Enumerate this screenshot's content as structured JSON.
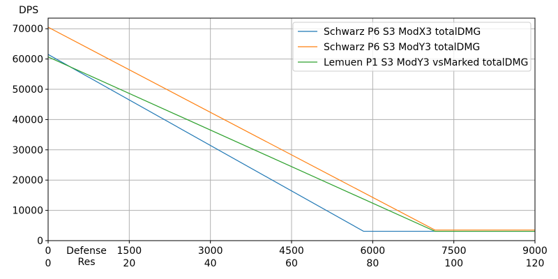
{
  "chart_data": {
    "type": "line",
    "ylabel": "DPS",
    "xlabel_secondary": [
      "Defense",
      "Res"
    ],
    "xlim": [
      0,
      9000
    ],
    "ylim": [
      0,
      73500
    ],
    "x_ticks": [
      0,
      1500,
      3000,
      4500,
      6000,
      7500,
      9000
    ],
    "x_ticks_secondary": [
      0,
      20,
      40,
      60,
      80,
      100,
      120
    ],
    "y_ticks": [
      0,
      10000,
      20000,
      30000,
      40000,
      50000,
      60000,
      70000
    ],
    "grid": true,
    "legend_position": "top-right",
    "series": [
      {
        "name": "Schwarz P6 S3 ModX3 totalDMG",
        "color": "#1f77b4",
        "x": [
          0,
          5830,
          9000
        ],
        "y": [
          61500,
          3100,
          3100
        ]
      },
      {
        "name": "Schwarz P6 S3 ModY3 totalDMG",
        "color": "#ff7f0e",
        "x": [
          0,
          7150,
          9000
        ],
        "y": [
          70500,
          3500,
          3500
        ]
      },
      {
        "name": "Lemuen P1 S3 ModY3 vsMarked totalDMG",
        "color": "#2ca02c",
        "x": [
          0,
          7150,
          9000
        ],
        "y": [
          60700,
          3100,
          3100
        ]
      }
    ]
  }
}
